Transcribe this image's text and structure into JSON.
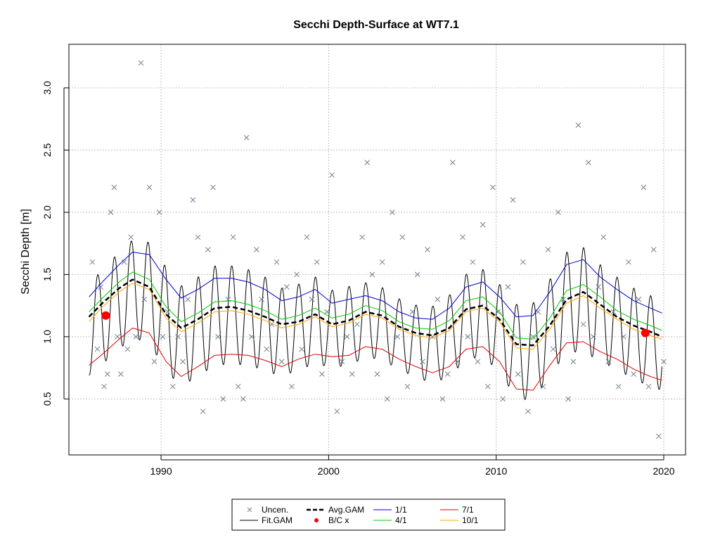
{
  "chart_data": {
    "type": "line",
    "title": "Secchi Depth-Surface at WT7.1",
    "xlabel": "",
    "ylabel": "Secchi Depth [m]",
    "xlim": [
      1984.5,
      2021.3
    ],
    "ylim": [
      0.05,
      3.35
    ],
    "x_ticks": [
      1990,
      2000,
      2010,
      2020
    ],
    "y_ticks": [
      0.5,
      1.0,
      1.5,
      2.0,
      2.5,
      3.0
    ],
    "x_tick_labels": [
      "1990",
      "2000",
      "2010",
      "2020"
    ],
    "y_tick_labels": [
      "0.5",
      "1.0",
      "1.5",
      "2.0",
      "2.5",
      "3.0"
    ],
    "grid": true,
    "legend_position": "bottom-center",
    "legend": [
      {
        "label": "Uncen.",
        "symbol": "x",
        "color": "#708090"
      },
      {
        "label": "Fit.GAM",
        "symbol": "line",
        "color": "#000000"
      },
      {
        "label": "Avg.GAM",
        "symbol": "dashed-line",
        "color": "#000000"
      },
      {
        "label": "B/C x",
        "symbol": "dot",
        "color": "#ff0000"
      },
      {
        "label": "1/1",
        "symbol": "line",
        "color": "#0000cd"
      },
      {
        "label": "4/1",
        "symbol": "line",
        "color": "#00cd00"
      },
      {
        "label": "7/1",
        "symbol": "line",
        "color": "#dd0000"
      },
      {
        "label": "10/1",
        "symbol": "line",
        "color": "#ffa500"
      }
    ],
    "colors": {
      "uncen": "#708090",
      "fit": "#000000",
      "avg": "#000000",
      "bc": "#ff0000",
      "jan": "#0000cd",
      "apr": "#00cd00",
      "jul": "#dd0000",
      "oct": "#ffa500",
      "grid": "#c0c0c0"
    },
    "series": [
      {
        "name": "Avg.GAM",
        "x": [
          1985.7,
          1986.5,
          1987.5,
          1988.3,
          1989.3,
          1990.3,
          1991.2,
          1992.2,
          1993.2,
          1994.2,
          1995.2,
          1996.2,
          1997.2,
          1998.2,
          1999.2,
          2000.2,
          2001.2,
          2002.2,
          2003.2,
          2004.2,
          2005.2,
          2006.2,
          2007.2,
          2008.2,
          2009.2,
          2010.2,
          2011.2,
          2012.2,
          2013.2,
          2014.2,
          2015.2,
          2016.2,
          2017.2,
          2018.2,
          2019.2,
          2019.9
        ],
        "y": [
          1.16,
          1.27,
          1.39,
          1.46,
          1.4,
          1.18,
          1.07,
          1.14,
          1.23,
          1.24,
          1.21,
          1.16,
          1.1,
          1.12,
          1.18,
          1.1,
          1.13,
          1.2,
          1.17,
          1.08,
          1.03,
          1.01,
          1.07,
          1.22,
          1.25,
          1.14,
          0.94,
          0.93,
          1.09,
          1.3,
          1.36,
          1.26,
          1.16,
          1.09,
          1.04,
          1.0
        ]
      },
      {
        "name": "1/1",
        "x": [
          1985.7,
          1986.5,
          1987.5,
          1988.3,
          1989.3,
          1990.3,
          1991.2,
          1992.2,
          1993.2,
          1994.2,
          1995.2,
          1996.2,
          1997.2,
          1998.2,
          1999.2,
          2000.2,
          2001.2,
          2002.2,
          2003.2,
          2004.2,
          2005.2,
          2006.2,
          2007.2,
          2008.2,
          2009.2,
          2010.2,
          2011.2,
          2012.2,
          2013.2,
          2014.2,
          2015.2,
          2016.2,
          2017.2,
          2018.2,
          2019.2,
          2019.9
        ],
        "y": [
          1.32,
          1.44,
          1.58,
          1.68,
          1.66,
          1.46,
          1.31,
          1.38,
          1.47,
          1.47,
          1.44,
          1.38,
          1.29,
          1.32,
          1.38,
          1.27,
          1.3,
          1.33,
          1.29,
          1.2,
          1.15,
          1.14,
          1.23,
          1.4,
          1.44,
          1.32,
          1.16,
          1.17,
          1.36,
          1.58,
          1.62,
          1.48,
          1.38,
          1.29,
          1.23,
          1.19
        ]
      },
      {
        "name": "4/1",
        "x": [
          1985.7,
          1986.5,
          1987.5,
          1988.3,
          1989.3,
          1990.3,
          1991.2,
          1992.2,
          1993.2,
          1994.2,
          1995.2,
          1996.2,
          1997.2,
          1998.2,
          1999.2,
          2000.2,
          2001.2,
          2002.2,
          2003.2,
          2004.2,
          2005.2,
          2006.2,
          2007.2,
          2008.2,
          2009.2,
          2010.2,
          2011.2,
          2012.2,
          2013.2,
          2014.2,
          2015.2,
          2016.2,
          2017.2,
          2018.2,
          2019.2,
          2019.9
        ],
        "y": [
          1.2,
          1.31,
          1.44,
          1.52,
          1.46,
          1.24,
          1.12,
          1.19,
          1.28,
          1.29,
          1.26,
          1.21,
          1.14,
          1.17,
          1.23,
          1.15,
          1.18,
          1.25,
          1.21,
          1.12,
          1.07,
          1.06,
          1.13,
          1.29,
          1.32,
          1.2,
          0.99,
          0.98,
          1.15,
          1.37,
          1.42,
          1.32,
          1.21,
          1.14,
          1.09,
          1.05
        ]
      },
      {
        "name": "7/1",
        "x": [
          1985.7,
          1986.5,
          1987.5,
          1988.3,
          1989.3,
          1990.3,
          1991.2,
          1992.2,
          1993.2,
          1994.2,
          1995.2,
          1996.2,
          1997.2,
          1998.2,
          1999.2,
          2000.2,
          2001.2,
          2002.2,
          2003.2,
          2004.2,
          2005.2,
          2006.2,
          2007.2,
          2008.2,
          2009.2,
          2010.2,
          2011.2,
          2012.2,
          2013.2,
          2014.2,
          2015.2,
          2016.2,
          2017.2,
          2018.2,
          2019.2,
          2019.9
        ],
        "y": [
          0.77,
          0.86,
          0.98,
          1.07,
          1.03,
          0.8,
          0.68,
          0.76,
          0.85,
          0.86,
          0.85,
          0.81,
          0.76,
          0.82,
          0.86,
          0.84,
          0.85,
          0.92,
          0.9,
          0.82,
          0.76,
          0.71,
          0.76,
          0.9,
          0.92,
          0.8,
          0.58,
          0.57,
          0.77,
          0.95,
          0.96,
          0.88,
          0.82,
          0.74,
          0.68,
          0.65
        ]
      },
      {
        "name": "10/1",
        "x": [
          1985.7,
          1986.5,
          1987.5,
          1988.3,
          1989.3,
          1990.3,
          1991.2,
          1992.2,
          1993.2,
          1994.2,
          1995.2,
          1996.2,
          1997.2,
          1998.2,
          1999.2,
          2000.2,
          2001.2,
          2002.2,
          2003.2,
          2004.2,
          2005.2,
          2006.2,
          2007.2,
          2008.2,
          2009.2,
          2010.2,
          2011.2,
          2012.2,
          2013.2,
          2014.2,
          2015.2,
          2016.2,
          2017.2,
          2018.2,
          2019.2,
          2019.9
        ],
        "y": [
          1.12,
          1.24,
          1.36,
          1.43,
          1.38,
          1.15,
          1.04,
          1.11,
          1.2,
          1.21,
          1.18,
          1.13,
          1.07,
          1.1,
          1.16,
          1.08,
          1.11,
          1.18,
          1.15,
          1.06,
          1.01,
          0.99,
          1.05,
          1.2,
          1.23,
          1.12,
          0.91,
          0.9,
          1.06,
          1.27,
          1.33,
          1.23,
          1.14,
          1.06,
          1.01,
          0.98
        ]
      },
      {
        "name": "B/C x",
        "x": [
          1986.7,
          2018.9
        ],
        "y": [
          1.17,
          1.03
        ]
      },
      {
        "name": "Uncen.",
        "x": [
          1985.9,
          1986.2,
          1986.4,
          1986.6,
          1986.8,
          1987.0,
          1987.2,
          1987.4,
          1987.6,
          1987.8,
          1988.0,
          1988.2,
          1988.5,
          1988.8,
          1989.0,
          1989.3,
          1989.6,
          1989.9,
          1990.1,
          1990.4,
          1990.7,
          1991.0,
          1991.3,
          1991.6,
          1991.9,
          1992.2,
          1992.5,
          1992.8,
          1993.1,
          1993.4,
          1993.7,
          1994.0,
          1994.3,
          1994.6,
          1994.9,
          1995.1,
          1995.4,
          1995.7,
          1996.0,
          1996.3,
          1996.6,
          1996.9,
          1997.2,
          1997.5,
          1997.8,
          1998.1,
          1998.4,
          1998.7,
          1999.0,
          1999.3,
          1999.6,
          1999.9,
          2000.2,
          2000.5,
          2000.8,
          2001.1,
          2001.4,
          2001.7,
          2002.0,
          2002.3,
          2002.6,
          2002.9,
          2003.2,
          2003.5,
          2003.8,
          2004.1,
          2004.4,
          2004.7,
          2005.0,
          2005.3,
          2005.6,
          2005.9,
          2006.2,
          2006.5,
          2006.8,
          2007.1,
          2007.4,
          2007.7,
          2008.0,
          2008.3,
          2008.6,
          2008.9,
          2009.2,
          2009.5,
          2009.8,
          2010.1,
          2010.4,
          2010.7,
          2011.0,
          2011.3,
          2011.6,
          2011.9,
          2012.2,
          2012.5,
          2012.8,
          2013.1,
          2013.4,
          2013.7,
          2014.0,
          2014.3,
          2014.6,
          2014.9,
          2015.2,
          2015.5,
          2015.8,
          2016.1,
          2016.4,
          2016.7,
          2017.0,
          2017.3,
          2017.6,
          2017.9,
          2018.2,
          2018.5,
          2018.8,
          2019.1,
          2019.4,
          2019.7,
          2020.0
        ],
        "y": [
          1.6,
          0.9,
          1.4,
          0.6,
          0.7,
          2.0,
          2.2,
          1.0,
          0.7,
          1.6,
          0.9,
          1.8,
          1.0,
          3.2,
          1.3,
          2.2,
          0.8,
          2.0,
          1.0,
          1.2,
          0.6,
          1.0,
          0.8,
          1.3,
          2.1,
          1.8,
          0.4,
          1.7,
          2.2,
          1.0,
          0.5,
          1.3,
          1.8,
          0.6,
          0.5,
          2.6,
          1.0,
          1.7,
          1.3,
          0.9,
          1.1,
          1.6,
          0.8,
          1.4,
          0.6,
          1.5,
          0.9,
          1.8,
          1.3,
          1.6,
          0.7,
          1.2,
          2.3,
          0.4,
          0.8,
          1.0,
          0.7,
          1.1,
          1.8,
          2.4,
          1.5,
          0.7,
          1.6,
          0.5,
          2.0,
          1.0,
          1.8,
          0.6,
          1.2,
          1.5,
          0.8,
          1.7,
          1.0,
          1.3,
          0.5,
          0.7,
          2.4,
          0.8,
          1.8,
          1.0,
          1.6,
          0.8,
          1.9,
          0.6,
          2.2,
          1.2,
          0.5,
          1.4,
          2.1,
          0.7,
          1.6,
          0.4,
          1.0,
          1.2,
          0.6,
          1.7,
          0.9,
          2.0,
          1.3,
          0.5,
          0.8,
          2.7,
          1.1,
          2.4,
          1.0,
          1.4,
          1.8,
          0.8,
          1.2,
          0.6,
          1.0,
          1.6,
          0.7,
          1.3,
          2.2,
          0.6,
          1.7,
          0.2,
          0.8
        ]
      }
    ]
  }
}
